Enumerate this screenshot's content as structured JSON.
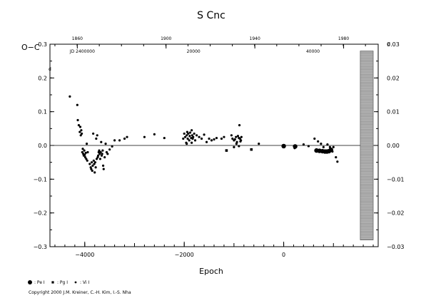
{
  "chart_data": {
    "type": "scatter",
    "title": "S Cnc",
    "ylabel": "O−C",
    "xlabel": "Epoch",
    "xlim": [
      -4700,
      1900
    ],
    "ylim": [
      -0.3,
      0.3
    ],
    "grid": false,
    "y_axis_unit_marker_left": "d",
    "y_axis_unit_marker_right": "d",
    "x_tick_labels": [
      "−4000",
      "−2000",
      "0"
    ],
    "x_ticks": [
      -4000,
      -2000,
      0
    ],
    "y_tick_labels": [
      "0.3",
      "0.2",
      "0.1",
      "0.0",
      "−0.1",
      "−0.2",
      "−0.3"
    ],
    "y_ticks": [
      0.3,
      0.2,
      0.1,
      0.0,
      -0.1,
      -0.2,
      -0.3
    ],
    "right_y_tick_labels": [
      "0.03",
      "0.02",
      "0.01",
      "0.00",
      "−0.01",
      "−0.02",
      "−0.03"
    ],
    "right_y_ticks": [
      0.03,
      0.02,
      0.01,
      0.0,
      -0.01,
      -0.02,
      -0.03
    ],
    "top_year_labels": [
      "1860",
      "1900",
      "1940",
      "1980"
    ],
    "top_year_epochs": [
      -4150,
      -2365,
      -580,
      1205
    ],
    "jd_labels": [
      "JD 2400000",
      "20000",
      "40000"
    ],
    "jd_epochs": [
      -4300,
      -1950,
      450
    ],
    "reference_line_y": 0.0,
    "shaded_band": {
      "x": [
        1540,
        1800
      ],
      "y": [
        -0.28,
        0.28
      ]
    },
    "series": [
      {
        "name": "Pe",
        "marker": "large-dot",
        "points": [
          [
            0,
            -0.002
          ],
          [
            230,
            -0.003
          ],
          [
            660,
            -0.015
          ],
          [
            720,
            -0.016
          ],
          [
            780,
            -0.017
          ],
          [
            830,
            -0.018
          ],
          [
            870,
            -0.018
          ],
          [
            910,
            -0.017
          ],
          [
            950,
            -0.013
          ]
        ]
      },
      {
        "name": "Pg",
        "marker": "square",
        "points": [
          [
            -1150,
            -0.015
          ],
          [
            -650,
            -0.012
          ]
        ]
      },
      {
        "name": "Vi",
        "marker": "small-dot",
        "points": [
          [
            -4300,
            0.145
          ],
          [
            -4150,
            0.12
          ],
          [
            -4140,
            0.075
          ],
          [
            -4120,
            0.06
          ],
          [
            -4100,
            0.04
          ],
          [
            -4090,
            0.055
          ],
          [
            -4080,
            0.03
          ],
          [
            -4070,
            0.045
          ],
          [
            -4060,
            0.035
          ],
          [
            -4050,
            -0.02
          ],
          [
            -4040,
            -0.01
          ],
          [
            -4030,
            -0.025
          ],
          [
            -4020,
            -0.03
          ],
          [
            -4010,
            -0.015
          ],
          [
            -4000,
            -0.028
          ],
          [
            -3990,
            -0.035
          ],
          [
            -3980,
            -0.022
          ],
          [
            -3970,
            -0.04
          ],
          [
            -3960,
            0.005
          ],
          [
            -3950,
            -0.045
          ],
          [
            -3940,
            -0.02
          ],
          [
            -3900,
            -0.055
          ],
          [
            -3880,
            -0.065
          ],
          [
            -3870,
            -0.07
          ],
          [
            -3860,
            -0.05
          ],
          [
            -3850,
            -0.075
          ],
          [
            -3840,
            -0.06
          ],
          [
            -3830,
            0.035
          ],
          [
            -3820,
            -0.045
          ],
          [
            -3810,
            -0.055
          ],
          [
            -3800,
            -0.08
          ],
          [
            -3790,
            -0.05
          ],
          [
            -3780,
            -0.065
          ],
          [
            -3770,
            0.02
          ],
          [
            -3760,
            -0.04
          ],
          [
            -3750,
            0.03
          ],
          [
            -3740,
            -0.035
          ],
          [
            -3730,
            -0.03
          ],
          [
            -3720,
            -0.02
          ],
          [
            -3710,
            -0.015
          ],
          [
            -3700,
            -0.025
          ],
          [
            -3690,
            -0.04
          ],
          [
            -3680,
            -0.02
          ],
          [
            -3670,
            0.01
          ],
          [
            -3660,
            -0.03
          ],
          [
            -3650,
            -0.025
          ],
          [
            -3640,
            -0.015
          ],
          [
            -3630,
            -0.06
          ],
          [
            -3620,
            -0.07
          ],
          [
            -3600,
            -0.035
          ],
          [
            -3580,
            0.005
          ],
          [
            -3560,
            -0.02
          ],
          [
            -3540,
            -0.025
          ],
          [
            -3500,
            -0.012
          ],
          [
            -3450,
            -0.003
          ],
          [
            -3400,
            0.015
          ],
          [
            -3300,
            0.015
          ],
          [
            -3200,
            0.02
          ],
          [
            -3150,
            0.025
          ],
          [
            -2800,
            0.025
          ],
          [
            -2600,
            0.033
          ],
          [
            -2400,
            0.022
          ],
          [
            -2020,
            0.02
          ],
          [
            -2000,
            0.035
          ],
          [
            -1980,
            0.025
          ],
          [
            -1960,
            0.008
          ],
          [
            -1950,
            0.03
          ],
          [
            -1940,
            0.04
          ],
          [
            -1930,
            0.02
          ],
          [
            -1920,
            0.035
          ],
          [
            -1900,
            0.015
          ],
          [
            -1890,
            0.028
          ],
          [
            -1880,
            0.038
          ],
          [
            -1860,
            0.022
          ],
          [
            -1850,
            0.045
          ],
          [
            -1840,
            0.03
          ],
          [
            -1830,
            0.02
          ],
          [
            -1820,
            0.025
          ],
          [
            -1800,
            0.035
          ],
          [
            -1780,
            0.015
          ],
          [
            -1750,
            0.03
          ],
          [
            -1700,
            0.025
          ],
          [
            -1650,
            0.02
          ],
          [
            -1600,
            0.032
          ],
          [
            -1550,
            0.01
          ],
          [
            -1500,
            0.02
          ],
          [
            -1450,
            0.015
          ],
          [
            -1400,
            0.018
          ],
          [
            -1350,
            0.022
          ],
          [
            -1250,
            0.02
          ],
          [
            -1200,
            0.025
          ],
          [
            -1050,
            0.03
          ],
          [
            -1030,
            0.02
          ],
          [
            -1000,
            0.015
          ],
          [
            -980,
            0.018
          ],
          [
            -960,
            0.025
          ],
          [
            -940,
            0.01
          ],
          [
            -920,
            0.028
          ],
          [
            -900,
            0.022
          ],
          [
            -890,
            0.06
          ],
          [
            -880,
            0.02
          ],
          [
            -870,
            0.012
          ],
          [
            -860,
            0.015
          ],
          [
            -850,
            0.025
          ],
          [
            -500,
            0.005
          ],
          [
            -1000,
            -0.005
          ],
          [
            -950,
            0.005
          ],
          [
            -900,
            -0.002
          ],
          [
            -1950,
            0.005
          ],
          [
            -1850,
            0.008
          ],
          [
            220,
            -0.008
          ],
          [
            400,
            0.003
          ],
          [
            500,
            -0.002
          ],
          [
            620,
            0.02
          ],
          [
            690,
            0.012
          ],
          [
            750,
            0.005
          ],
          [
            800,
            -0.005
          ],
          [
            880,
            0.003
          ],
          [
            930,
            -0.005
          ],
          [
            980,
            -0.018
          ],
          [
            1000,
            -0.005
          ],
          [
            1050,
            -0.035
          ],
          [
            1080,
            -0.048
          ]
        ]
      }
    ],
    "legend": [
      {
        "marker": "large-dot",
        "label": ": Pe I"
      },
      {
        "marker": "square",
        "label": ": Pg I"
      },
      {
        "marker": "small-dot",
        "label": ": Vi I"
      }
    ]
  },
  "copyright": "Copyright 2000 J.M. Kreiner, C.-H. Kim, I.-S. Nha"
}
